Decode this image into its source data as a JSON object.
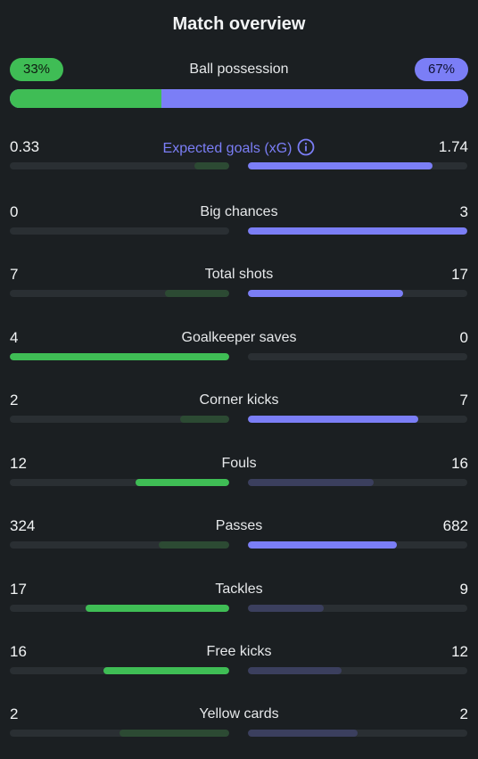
{
  "title": "Match overview",
  "possession": {
    "label": "Ball possession",
    "home_label": "33%",
    "away_label": "67%",
    "home_pct": 33,
    "away_pct": 67
  },
  "colors": {
    "home": "#3fbd55",
    "away": "#7b7ef6",
    "home_dim": "#2c4a33",
    "away_dim": "#3b3f5e",
    "track": "#2a2f33"
  },
  "stats": [
    {
      "label": "Expected goals (xG)",
      "home": "0.33",
      "away": "1.74",
      "h": 0.33,
      "a": 1.74,
      "lead": "away",
      "highlight": true,
      "icon": "info-icon"
    },
    {
      "label": "Big chances",
      "home": "0",
      "away": "3",
      "h": 0,
      "a": 3,
      "lead": "away"
    },
    {
      "label": "Total shots",
      "home": "7",
      "away": "17",
      "h": 7,
      "a": 17,
      "lead": "away"
    },
    {
      "label": "Goalkeeper saves",
      "home": "4",
      "away": "0",
      "h": 4,
      "a": 0,
      "lead": "home"
    },
    {
      "label": "Corner kicks",
      "home": "2",
      "away": "7",
      "h": 2,
      "a": 7,
      "lead": "away"
    },
    {
      "label": "Fouls",
      "home": "12",
      "away": "16",
      "h": 12,
      "a": 16,
      "lead": "home"
    },
    {
      "label": "Passes",
      "home": "324",
      "away": "682",
      "h": 324,
      "a": 682,
      "lead": "away"
    },
    {
      "label": "Tackles",
      "home": "17",
      "away": "9",
      "h": 17,
      "a": 9,
      "lead": "home"
    },
    {
      "label": "Free kicks",
      "home": "16",
      "away": "12",
      "h": 16,
      "a": 12,
      "lead": "home"
    },
    {
      "label": "Yellow cards",
      "home": "2",
      "away": "2",
      "h": 2,
      "a": 2,
      "lead": "none"
    }
  ]
}
